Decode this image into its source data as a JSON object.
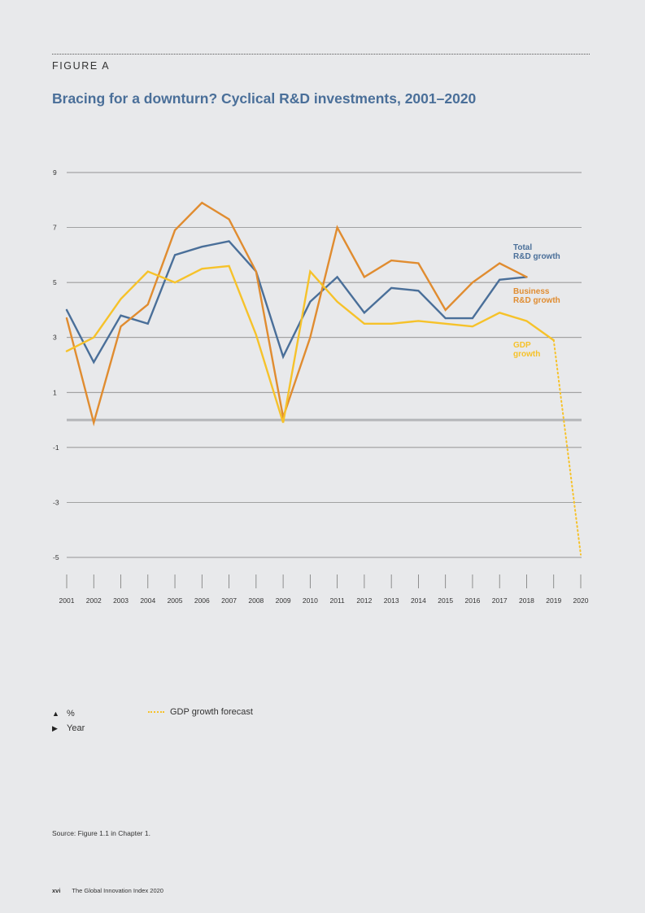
{
  "figure_label": "FIGURE A",
  "footer": {
    "page_number": "xvi",
    "publication": "The Global Innovation Index 2020"
  },
  "source_note": "Source: Figure 1.1 in Chapter 1.",
  "legend": {
    "y_unit": "%",
    "x_unit": "Year",
    "forecast_label": "GDP growth forecast"
  },
  "chart_data": {
    "type": "line",
    "title": "Bracing for a downturn? Cyclical R&D investments, 2001–2020",
    "xlabel": "",
    "ylabel": "",
    "x": [
      2001,
      2002,
      2003,
      2004,
      2005,
      2006,
      2007,
      2008,
      2009,
      2010,
      2011,
      2012,
      2013,
      2014,
      2015,
      2016,
      2017,
      2018,
      2019,
      2020
    ],
    "x_tick_labels": [
      "2001",
      "2002",
      "2003",
      "2004",
      "2005",
      "2006",
      "2007",
      "2008",
      "2009",
      "2010",
      "2011",
      "2012",
      "2013",
      "2014",
      "2015",
      "2016",
      "2017",
      "2018",
      "2019",
      "2020"
    ],
    "y_ticks": [
      9,
      7,
      5,
      3,
      1,
      -1,
      -3,
      -5
    ],
    "y_tick_labels": [
      "9",
      "7",
      "5",
      "3",
      "1",
      "-1",
      "-3",
      "-5"
    ],
    "ylim": [
      -5,
      9
    ],
    "grid": true,
    "zero_line": true,
    "series": [
      {
        "name": "Total R&D growth",
        "label_lines": [
          "Total",
          "R&D growth"
        ],
        "color": "#4a6f99",
        "x": [
          2001,
          2002,
          2003,
          2004,
          2005,
          2006,
          2007,
          2008,
          2009,
          2010,
          2011,
          2012,
          2013,
          2014,
          2015,
          2016,
          2017,
          2018
        ],
        "values": [
          4.0,
          2.1,
          3.8,
          3.5,
          6.0,
          6.3,
          6.5,
          5.4,
          2.3,
          4.3,
          5.2,
          3.9,
          4.8,
          4.7,
          3.7,
          3.7,
          5.1,
          5.2
        ]
      },
      {
        "name": "Business R&D growth",
        "label_lines": [
          "Business",
          "R&D growth"
        ],
        "color": "#e08c30",
        "x": [
          2001,
          2002,
          2003,
          2004,
          2005,
          2006,
          2007,
          2008,
          2009,
          2010,
          2011,
          2012,
          2013,
          2014,
          2015,
          2016,
          2017,
          2018
        ],
        "values": [
          3.7,
          -0.1,
          3.4,
          4.2,
          6.9,
          7.9,
          7.3,
          5.4,
          0.1,
          3.0,
          7.0,
          5.2,
          5.8,
          5.7,
          4.0,
          5.0,
          5.7,
          5.2
        ]
      },
      {
        "name": "GDP growth",
        "label_lines": [
          "GDP",
          "growth"
        ],
        "color": "#f6c22a",
        "x": [
          2001,
          2002,
          2003,
          2004,
          2005,
          2006,
          2007,
          2008,
          2009,
          2010,
          2011,
          2012,
          2013,
          2014,
          2015,
          2016,
          2017,
          2018,
          2019
        ],
        "values": [
          2.5,
          3.0,
          4.4,
          5.4,
          5.0,
          5.5,
          5.6,
          3.1,
          -0.1,
          5.4,
          4.3,
          3.5,
          3.5,
          3.6,
          3.5,
          3.4,
          3.9,
          3.6,
          2.9
        ]
      },
      {
        "name": "GDP growth forecast",
        "color": "#f6c22a",
        "dashed": true,
        "x": [
          2019,
          2020
        ],
        "values": [
          2.9,
          -4.9
        ]
      }
    ]
  }
}
